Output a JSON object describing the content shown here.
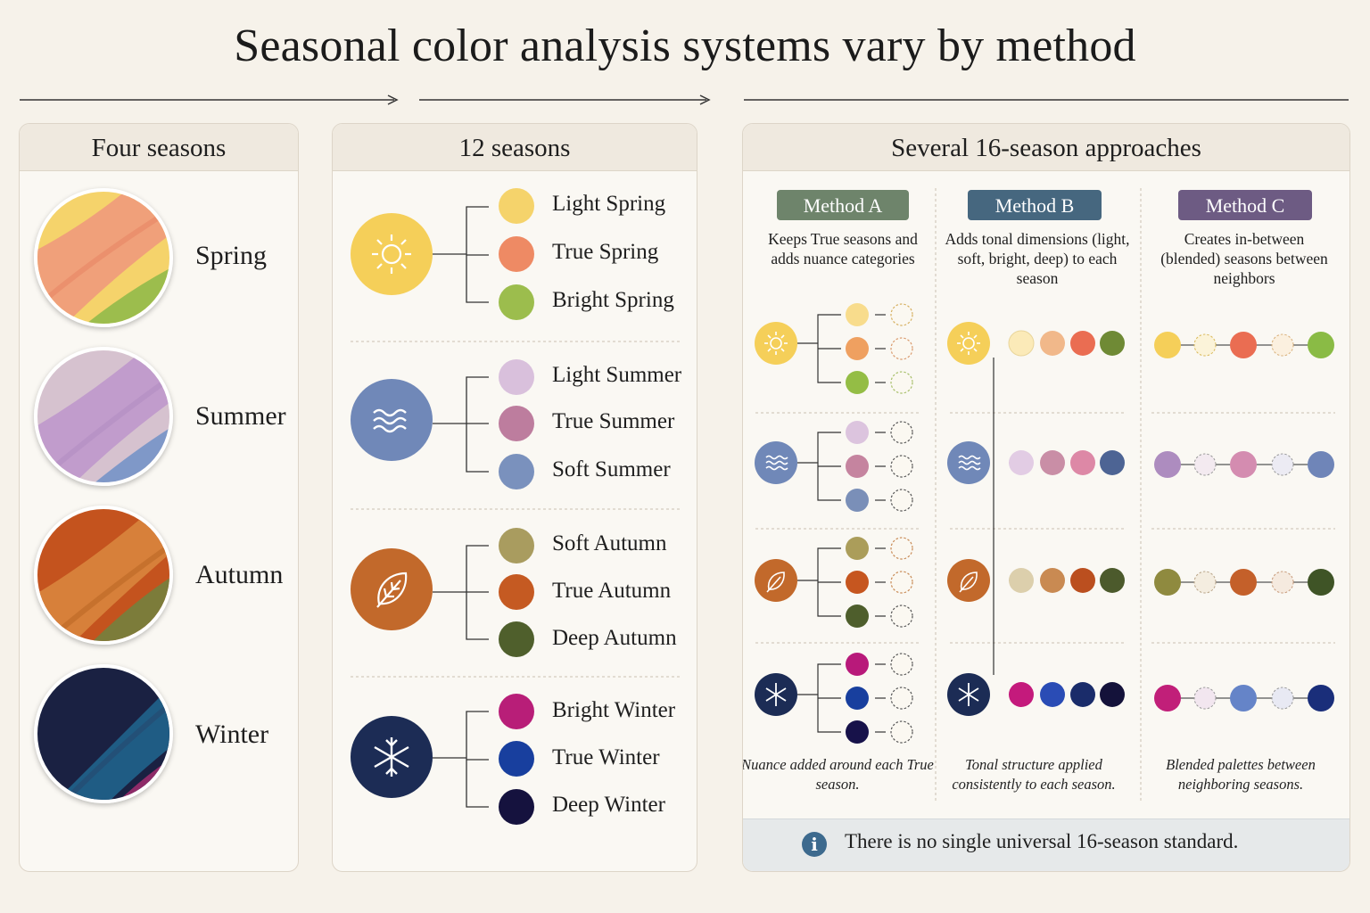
{
  "title": "Seasonal color analysis systems vary by method",
  "panels": {
    "four": {
      "heading": "Four seasons",
      "seasons": [
        "Spring",
        "Summer",
        "Autumn",
        "Winter"
      ]
    },
    "twelve": {
      "heading": "12 seasons",
      "groups": [
        {
          "icon": "sun-icon",
          "labels": [
            "Light Spring",
            "True Spring",
            "Bright Spring"
          ]
        },
        {
          "icon": "waves-icon",
          "labels": [
            "Light Summer",
            "True Summer",
            "Soft Summer"
          ]
        },
        {
          "icon": "leaf-icon",
          "labels": [
            "Soft Autumn",
            "True Autumn",
            "Deep Autumn"
          ]
        },
        {
          "icon": "snowflake-icon",
          "labels": [
            "Bright Winter",
            "True Winter",
            "Deep Winter"
          ]
        }
      ]
    },
    "sixteen": {
      "heading": "Several 16-season approaches",
      "methods": [
        {
          "tag": "Method A",
          "desc": "Keeps True seasons and adds nuance categories",
          "caption": "Nuance added around each True season.",
          "color": "#6e846b"
        },
        {
          "tag": "Method B",
          "desc": "Adds tonal dimensions (light, soft, bright, deep) to each season",
          "caption": "Tonal structure applied consistently to each season.",
          "color": "#46677f"
        },
        {
          "tag": "Method C",
          "desc": "Creates in-between (blended) seasons between neighbors",
          "caption": "Blended palettes between neighboring seasons.",
          "color": "#6d5b83"
        }
      ],
      "note": "There is no single universal 16-season standard."
    }
  },
  "colors": {
    "spring": [
      "#f5d36b",
      "#ee8a64",
      "#9cbd4d"
    ],
    "summer": [
      "#d9c0dc",
      "#bd7d9e",
      "#7a91bd"
    ],
    "autumn": [
      "#a99c5f",
      "#c55a22",
      "#4f5f2c"
    ],
    "winter": [
      "#b81e78",
      "#183f9e",
      "#15123e"
    ],
    "season_icon_bg": [
      "#f5cf59",
      "#7088b8",
      "#c2692b",
      "#1c2c55"
    ],
    "method_b": [
      [
        "#fbeab8",
        "#f1b88a",
        "#ea6d52",
        "#6f8a35"
      ],
      [
        "#e2cce4",
        "#c98ea6",
        "#dd88a6",
        "#4d6494"
      ],
      [
        "#dccfac",
        "#c98a52",
        "#bb4f1f",
        "#4c5a2c"
      ],
      [
        "#c41a7c",
        "#2a4cb5",
        "#1a2c6a",
        "#14123a"
      ]
    ],
    "method_c": [
      [
        "#f5cf59",
        "#ea6d52",
        "#8abb45"
      ],
      [
        "#ad8cbf",
        "#d48cb0",
        "#6f85b8"
      ],
      [
        "#8f8a3f",
        "#c4602a",
        "#3f5426"
      ],
      [
        "#c11f79",
        "#6584c8",
        "#1a2e7a"
      ]
    ]
  }
}
